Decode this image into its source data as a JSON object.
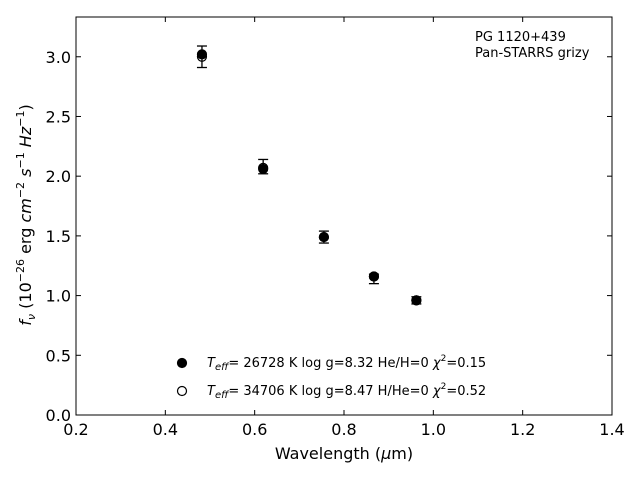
{
  "chart_data": {
    "type": "scatter",
    "title": "",
    "annotation": [
      "PG 1120+439",
      "Pan-STARRS grizy"
    ],
    "xlabel": "Wavelength (μm)",
    "ylabel": "f_ν (10^-26 erg cm^-2 s^-1 Hz^-1)",
    "xlim": [
      0.2,
      1.4
    ],
    "ylim": [
      0.0,
      3.333
    ],
    "xticks": [
      0.2,
      0.4,
      0.6,
      0.8,
      1.0,
      1.2,
      1.4
    ],
    "xtick_labels": [
      "0.2",
      "0.4",
      "0.6",
      "0.8",
      "1.0",
      "1.2",
      "1.4"
    ],
    "yticks": [
      0.0,
      0.5,
      1.0,
      1.5,
      2.0,
      2.5,
      3.0
    ],
    "ytick_labels": [
      "0.0",
      "0.5",
      "1.0",
      "1.5",
      "2.0",
      "2.5",
      "3.0"
    ],
    "grid": false,
    "legend_position": "bottom-center",
    "series": [
      {
        "name": "Teff= 26728 K  log g=8.32  He/H=0  χ2=0.15",
        "marker": "filled-circle",
        "color": "#000000",
        "points": [
          {
            "x": 0.482,
            "y": 3.02
          },
          {
            "x": 0.619,
            "y": 2.06
          },
          {
            "x": 0.755,
            "y": 1.49
          },
          {
            "x": 0.867,
            "y": 1.16
          },
          {
            "x": 0.962,
            "y": 0.96
          }
        ]
      },
      {
        "name": "Teff= 34706 K  log g=8.47  H/He=0  χ2=0.52",
        "marker": "open-circle",
        "color": "#000000",
        "points": [
          {
            "x": 0.482,
            "y": 3.0
          },
          {
            "x": 0.619,
            "y": 2.07
          },
          {
            "x": 0.755,
            "y": 1.49
          },
          {
            "x": 0.867,
            "y": 1.16
          },
          {
            "x": 0.962,
            "y": 0.96
          }
        ]
      }
    ],
    "observed": {
      "name": "Pan-STARRS grizy",
      "points": [
        {
          "x": 0.482,
          "y": 3.0,
          "err": 0.09
        },
        {
          "x": 0.619,
          "y": 2.08,
          "err": 0.06
        },
        {
          "x": 0.755,
          "y": 1.49,
          "err": 0.05
        },
        {
          "x": 0.867,
          "y": 1.14,
          "err": 0.04
        },
        {
          "x": 0.962,
          "y": 0.96,
          "err": 0.03
        }
      ]
    }
  }
}
